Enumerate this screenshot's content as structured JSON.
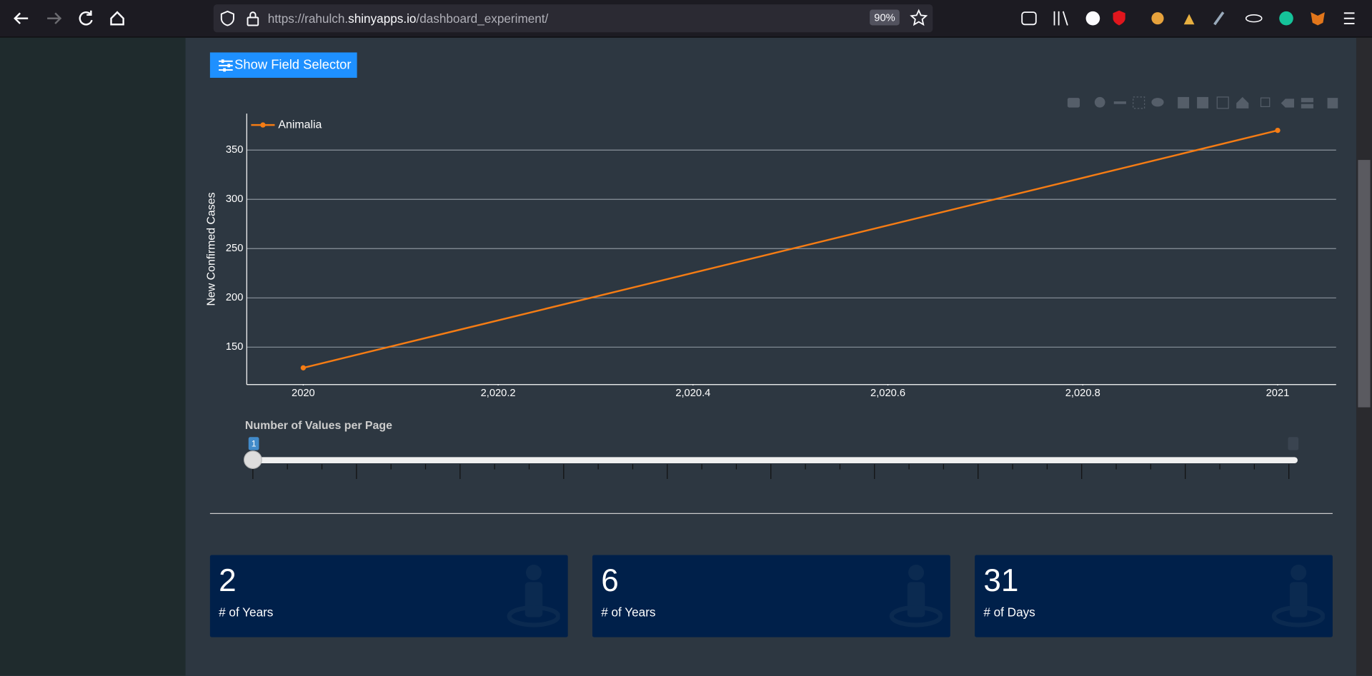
{
  "browser": {
    "url": {
      "start": "https://rahulch.",
      "domain": "shinyapps.io",
      "path": "/dashboard_experiment/"
    },
    "zoom": "90%"
  },
  "button": "Show Field Selector",
  "chart_data": {
    "type": "line",
    "x": [
      2020,
      2021
    ],
    "series": [
      {
        "name": "Animalia",
        "color": "#f57c14",
        "values": [
          129,
          370
        ]
      }
    ],
    "y_label": "New Confirmed Cases",
    "xlim": [
      2019.942,
      2021.06
    ],
    "ylim": [
      112,
      387
    ],
    "xticks": [
      2020,
      {
        "value": 2020.2,
        "label": "2,020.2"
      },
      {
        "value": 2020.4,
        "label": "2,020.4"
      },
      {
        "value": 2020.6,
        "label": "2,020.6"
      },
      {
        "value": 2020.8,
        "label": "2,020.8"
      },
      2021
    ],
    "yticks": [
      150,
      200,
      250,
      300,
      350
    ],
    "grid": true,
    "legend": "top-left"
  },
  "slider": {
    "label": "Number of Values per Page",
    "value": 1
  },
  "value_boxes": [
    {
      "value": 2,
      "label": "# of Years"
    },
    {
      "value": 6,
      "label": "# of Years"
    },
    {
      "value": 31,
      "label": "# of Days"
    }
  ]
}
